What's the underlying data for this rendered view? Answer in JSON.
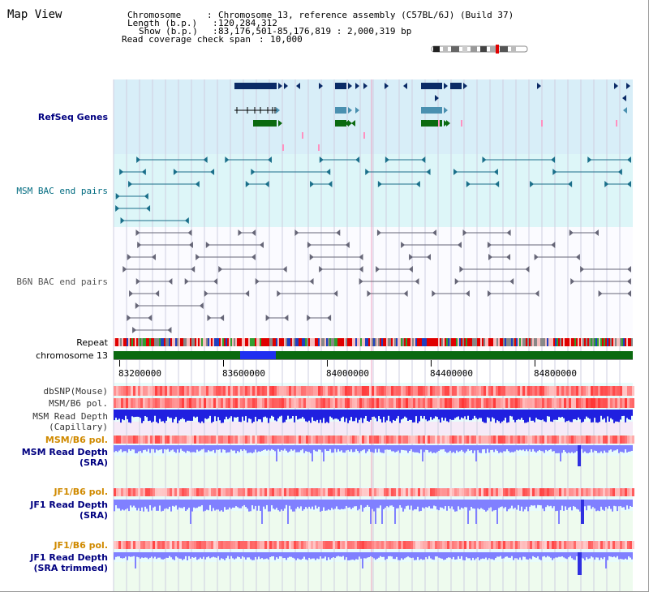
{
  "view": {
    "title": "Map View"
  },
  "info": {
    "rows": [
      {
        "label": "Chromosome",
        "value": "Chromosome 13, reference assembly (C57BL/6J) (Build 37)"
      },
      {
        "label": "Length (b.p.)",
        "value": "120,284,312"
      },
      {
        "label": "Show (b.p.)",
        "value": "83,176,501-85,176,819 : 2,000,319 bp"
      },
      {
        "label": "Read coverage check span",
        "value": "10,000"
      }
    ]
  },
  "tracks": {
    "refseq": "RefSeq Genes",
    "msm_bac": "MSM BAC end pairs",
    "b6n_bac": "B6N BAC end pairs",
    "repeat": "Repeat",
    "chromosome": "chromosome 13",
    "dbsnp": "dbSNP(Mouse)",
    "msm_b6_pol_1": "MSM/B6 pol.",
    "msm_read_depth_cap": "MSM Read Depth\n(Capillary)",
    "msm_b6_pol_2": "MSM/B6 pol.",
    "msm_read_depth_sra": "MSM Read Depth\n(SRA)",
    "jf1_b6_pol_1": "JF1/B6 pol.",
    "jf1_read_depth_sra": "JF1 Read Depth\n(SRA)",
    "jf1_b6_pol_2": "JF1/B6 pol.",
    "jf1_read_depth_trim": "JF1 Read Depth\n(SRA trimmed)"
  },
  "axis": {
    "ticks": [
      83200000,
      83600000,
      84000000,
      84400000,
      84800000
    ],
    "tick_labels": [
      "83200000",
      "83600000",
      "84000000",
      "84400000",
      "84800000"
    ],
    "range": [
      83176501,
      85176819
    ]
  },
  "colors": {
    "gene_navy": "#0a2a66",
    "gene_light": "#4a90b0",
    "gene_green": "#0b6a10",
    "msm_bg": "#ddf6f8",
    "refseq_bg": "#d8eef8",
    "chromosome_bar": "#0b6a10",
    "chromosome_highlight": "#1f2ff0",
    "depth_dark": "#2020e0",
    "depth_light": "#8080ff",
    "pol_red": "#ff3030"
  }
}
